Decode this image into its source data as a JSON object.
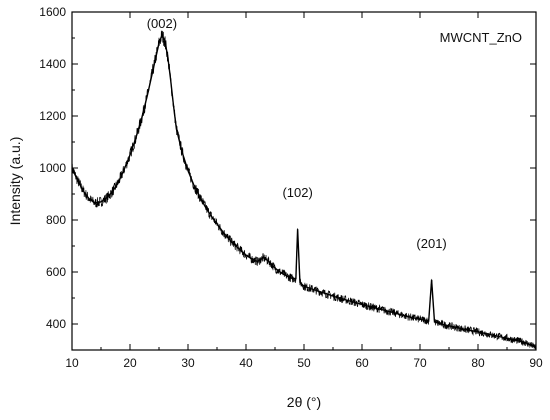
{
  "chart_data": {
    "type": "line",
    "title": "",
    "xlabel": "2θ (°)",
    "ylabel": "Intensity (a.u.)",
    "xlim": [
      10,
      90
    ],
    "ylim": [
      300,
      1600
    ],
    "x_ticks": [
      10,
      20,
      30,
      40,
      50,
      60,
      70,
      80,
      90
    ],
    "y_ticks": [
      400,
      600,
      800,
      1000,
      1200,
      1400,
      1600
    ],
    "grid": false,
    "legend_position": "top-right",
    "series": [
      {
        "name": "MWCNT_ZnO",
        "color": "#000000",
        "x": [
          10,
          11,
          12,
          13,
          14,
          15,
          16,
          17,
          18,
          19,
          20,
          21,
          22,
          23,
          24,
          24.5,
          25,
          25.5,
          26,
          26.5,
          27,
          27.5,
          28,
          29,
          30,
          31,
          32,
          33,
          34,
          35,
          36,
          37,
          38,
          39,
          40,
          41,
          42,
          43,
          44,
          45,
          46,
          47,
          48,
          48.6,
          48.9,
          49.3,
          50,
          52,
          54,
          56,
          58,
          60,
          62,
          64,
          66,
          68,
          70,
          71.5,
          72,
          72.5,
          74,
          76,
          78,
          80,
          82,
          84,
          86,
          88,
          90
        ],
        "y": [
          1000,
          950,
          910,
          880,
          865,
          870,
          885,
          910,
          945,
          995,
          1050,
          1115,
          1190,
          1280,
          1380,
          1430,
          1480,
          1510,
          1490,
          1430,
          1340,
          1240,
          1150,
          1060,
          990,
          935,
          890,
          850,
          815,
          785,
          755,
          728,
          705,
          685,
          665,
          650,
          640,
          655,
          640,
          615,
          598,
          585,
          575,
          575,
          765,
          560,
          545,
          530,
          515,
          500,
          488,
          475,
          463,
          452,
          440,
          428,
          418,
          412,
          570,
          408,
          398,
          388,
          378,
          370,
          360,
          350,
          340,
          330,
          310
        ]
      }
    ],
    "annotations": [
      {
        "text": "(002)",
        "x": 25.5
      },
      {
        "text": "(102)",
        "x": 48.9
      },
      {
        "text": "(201)",
        "x": 72
      }
    ]
  }
}
